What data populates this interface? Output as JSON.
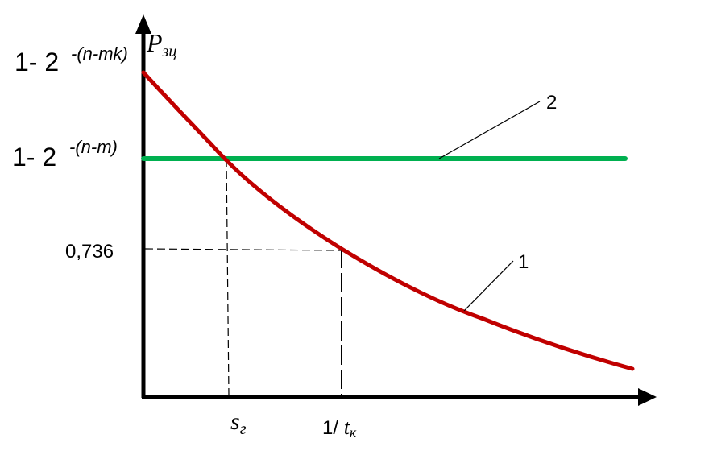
{
  "y_axis": {
    "symbol": "P",
    "subscript": "зц"
  },
  "y_ticks": {
    "top": {
      "base": "1- 2",
      "exp": "-(n-mk)"
    },
    "mid": {
      "base": "1- 2",
      "exp": "-(n-m)"
    },
    "low": "0,736"
  },
  "x_ticks": {
    "s_main": "s",
    "s_sub": "г",
    "t_prefix": "1/ ",
    "t_main": "t",
    "t_sub": "к"
  },
  "curves": {
    "curve1": {
      "label": "1",
      "color": "#c00000"
    },
    "curve2": {
      "label": "2",
      "color": "#00b050"
    }
  }
}
